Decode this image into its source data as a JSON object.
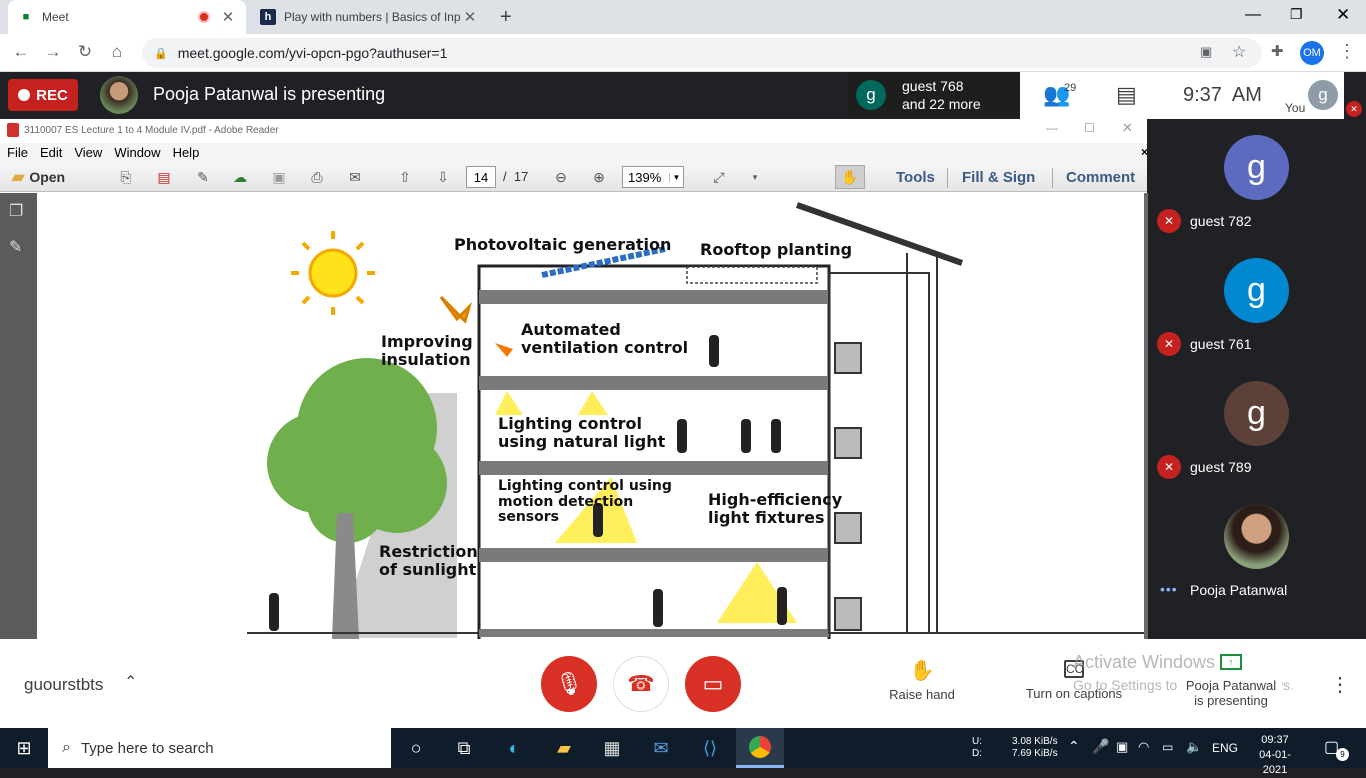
{
  "browser": {
    "tabs": [
      {
        "title": "Meet"
      },
      {
        "title": "Play with numbers | Basics of Inp"
      }
    ],
    "url": "meet.google.com/yvi-opcn-pgo?authuser=1",
    "profile_initials": "OM"
  },
  "meet": {
    "rec_label": "REC",
    "presenting_title": "Pooja Patanwal is presenting",
    "guest_chip": {
      "line1": "guest 768",
      "line2": "and 22 more",
      "avatar": "g"
    },
    "participant_count": "29",
    "time": "9:37  AM",
    "you_label": "You",
    "self_avatar": "g",
    "participants": [
      {
        "name": "guest 782",
        "avatar": "g",
        "color": "#5c6bc0"
      },
      {
        "name": "guest 761",
        "avatar": "g",
        "color": "#0288d1"
      },
      {
        "name": "guest 789",
        "avatar": "g",
        "color": "#5d4037"
      },
      {
        "name": "Pooja Patanwal",
        "avatar": ""
      }
    ],
    "meeting_name": "guourstbts",
    "raise_hand": "Raise hand",
    "captions": "Turn on captions",
    "presenting_line1": "Pooja Patanwal",
    "presenting_line2": "is presenting",
    "activate_title": "Activate Windows",
    "activate_sub": "Go to Settings to activate Windows."
  },
  "reader": {
    "window_title": "3110007 ES Lecture 1 to 4 Module IV.pdf - Adobe Reader",
    "menu": [
      "File",
      "Edit",
      "View",
      "Window",
      "Help"
    ],
    "open_label": "Open",
    "page": "14",
    "page_total": "/  17",
    "zoom": "139%",
    "tools": "Tools",
    "fill_sign": "Fill & Sign",
    "comment": "Comment"
  },
  "diagram": {
    "pv": "Photovoltaic generation",
    "rooftop": "Rooftop planting",
    "insulation": "Improving insulation",
    "ventilation": "Automated ventilation control",
    "lighting_natural": "Lighting control using natural light",
    "lighting_motion": "Lighting control using motion detection sensors",
    "fixtures": "High-efficiency light fixtures",
    "restriction": "Restriction of sunlight"
  },
  "taskbar": {
    "search": "Type here to search",
    "net_up_label": "U:",
    "net_up": "3.08 KiB/s",
    "net_down_label": "D:",
    "net_down": "7.69 KiB/s",
    "lang": "ENG",
    "clock": "09:37",
    "date": "04-01-2021",
    "notif_count": "9"
  }
}
